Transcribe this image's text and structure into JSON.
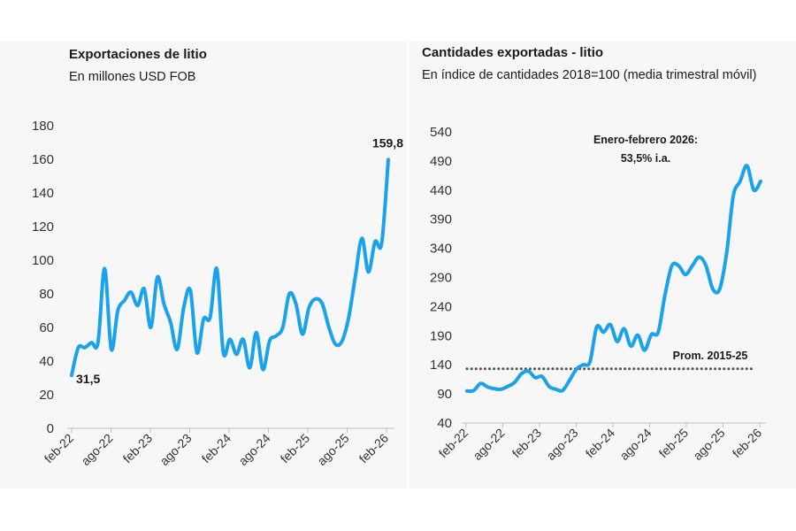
{
  "chart_data": [
    {
      "type": "line",
      "title": "Exportaciones de litio",
      "subtitle": "En millones USD FOB",
      "ylim": [
        0,
        180
      ],
      "yticks": [
        "0",
        "20",
        "40",
        "60",
        "80",
        "100",
        "120",
        "140",
        "160",
        "180"
      ],
      "xtick_labels": [
        "feb-22",
        "ago-22",
        "feb-23",
        "ago-23",
        "feb-24",
        "ago-24",
        "feb-25",
        "ago-25",
        "feb-26"
      ],
      "series": [
        {
          "name": "Exportaciones de litio",
          "color": "#1aa3ec",
          "values": [
            31.5,
            48,
            48,
            51,
            51,
            95,
            47,
            70,
            76,
            81,
            73,
            83,
            60,
            90,
            74,
            63,
            47,
            72,
            82,
            45,
            65,
            66,
            95,
            45,
            53,
            44,
            53,
            36,
            57,
            35,
            52,
            55,
            60,
            80,
            74,
            56,
            72,
            77,
            74,
            60,
            50,
            52,
            66,
            90,
            113,
            93,
            111,
            110,
            159.8
          ]
        }
      ],
      "annotations": {
        "first_value": "31,5",
        "last_value": "159,8"
      }
    },
    {
      "type": "line",
      "title": "Cantidades exportadas - litio",
      "subtitle": "En índice de cantidades 2018=100 (media trimestral móvil)",
      "ylim": [
        40,
        540
      ],
      "yticks": [
        "40",
        "90",
        "140",
        "190",
        "240",
        "290",
        "340",
        "390",
        "440",
        "490",
        "540"
      ],
      "xtick_labels": [
        "feb-22",
        "ago-22",
        "feb-23",
        "ago-23",
        "feb-24",
        "ago-24",
        "feb-25",
        "ago-25",
        "feb-26"
      ],
      "series": [
        {
          "name": "Índice de cantidades",
          "color": "#1aa3ec",
          "values": [
            95,
            96,
            108,
            102,
            99,
            98,
            103,
            110,
            125,
            129,
            118,
            120,
            103,
            98,
            96,
            113,
            132,
            140,
            145,
            205,
            196,
            209,
            180,
            202,
            172,
            191,
            165,
            192,
            196,
            260,
            310,
            310,
            295,
            310,
            325,
            310,
            270,
            270,
            330,
            430,
            455,
            482,
            440,
            455
          ]
        },
        {
          "name": "Prom. 2015-25",
          "color": "#555555",
          "style": "dotted",
          "values": [
            133
          ]
        }
      ],
      "annotations": {
        "avg_label": "Prom. 2015-25",
        "note_line1": "Enero-febrero 2026:",
        "note_line2": "53,5% i.a."
      }
    }
  ]
}
